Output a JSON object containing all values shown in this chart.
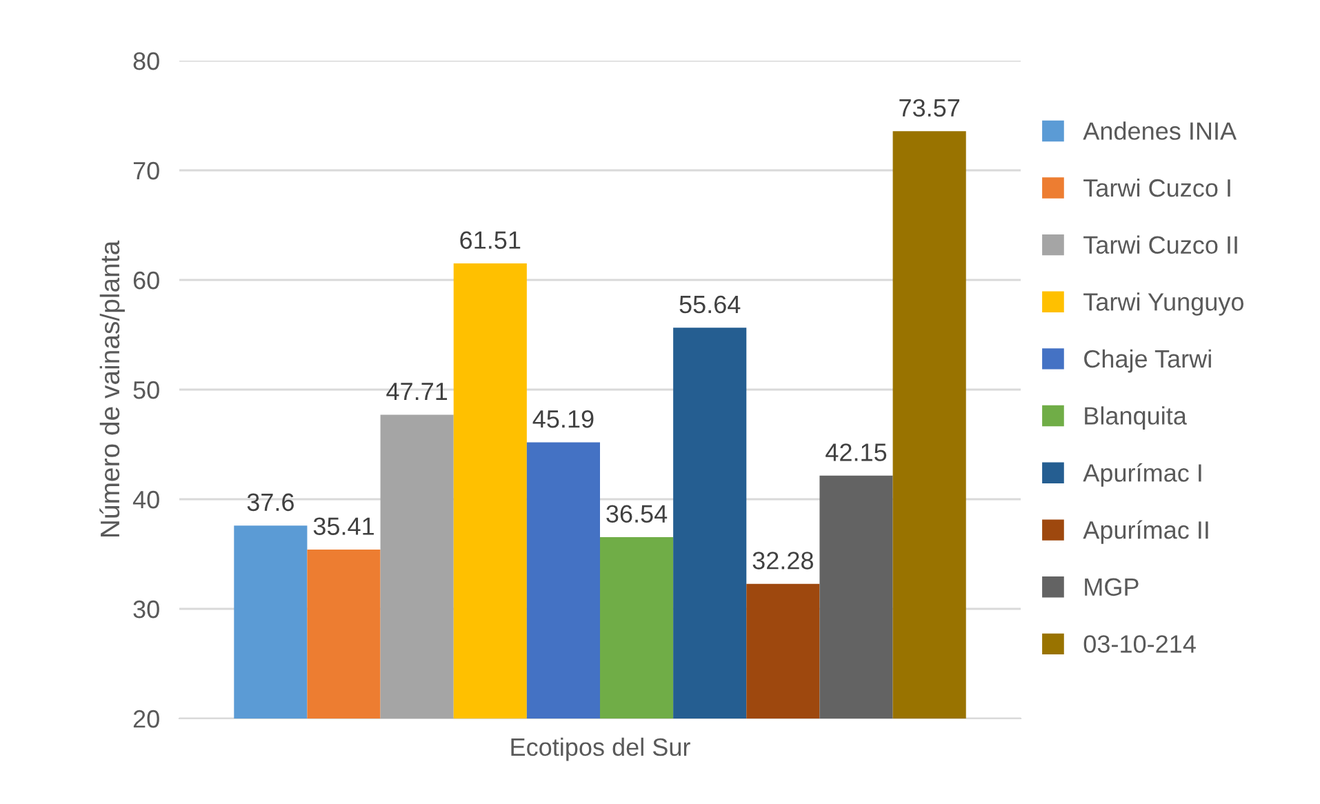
{
  "chart_data": {
    "type": "bar",
    "categories": [
      "Ecotipos del Sur"
    ],
    "ylabel": "Número de vainas/planta",
    "ylim": [
      20,
      80
    ],
    "yticks": [
      20,
      30,
      40,
      50,
      60,
      70,
      80
    ],
    "grid": "y",
    "legend": "right",
    "data_labels": true,
    "series": [
      {
        "name": "Andenes INIA",
        "color": "#5b9bd5",
        "values": [
          37.6
        ]
      },
      {
        "name": "Tarwi Cuzco I",
        "color": "#ed7d31",
        "values": [
          35.41
        ]
      },
      {
        "name": "Tarwi Cuzco II",
        "color": "#a5a5a5",
        "values": [
          47.71
        ]
      },
      {
        "name": "Tarwi Yunguyo",
        "color": "#ffc000",
        "values": [
          61.51
        ]
      },
      {
        "name": "Chaje Tarwi",
        "color": "#4472c4",
        "values": [
          45.19
        ]
      },
      {
        "name": "Blanquita",
        "color": "#70ad47",
        "values": [
          36.54
        ]
      },
      {
        "name": "Apurímac I",
        "color": "#255e91",
        "values": [
          55.64
        ]
      },
      {
        "name": "Apurímac II",
        "color": "#9e480e",
        "values": [
          32.28
        ]
      },
      {
        "name": "MGP",
        "color": "#636363",
        "values": [
          42.15
        ]
      },
      {
        "name": "03-10-214",
        "color": "#997300",
        "values": [
          73.57
        ]
      }
    ]
  }
}
